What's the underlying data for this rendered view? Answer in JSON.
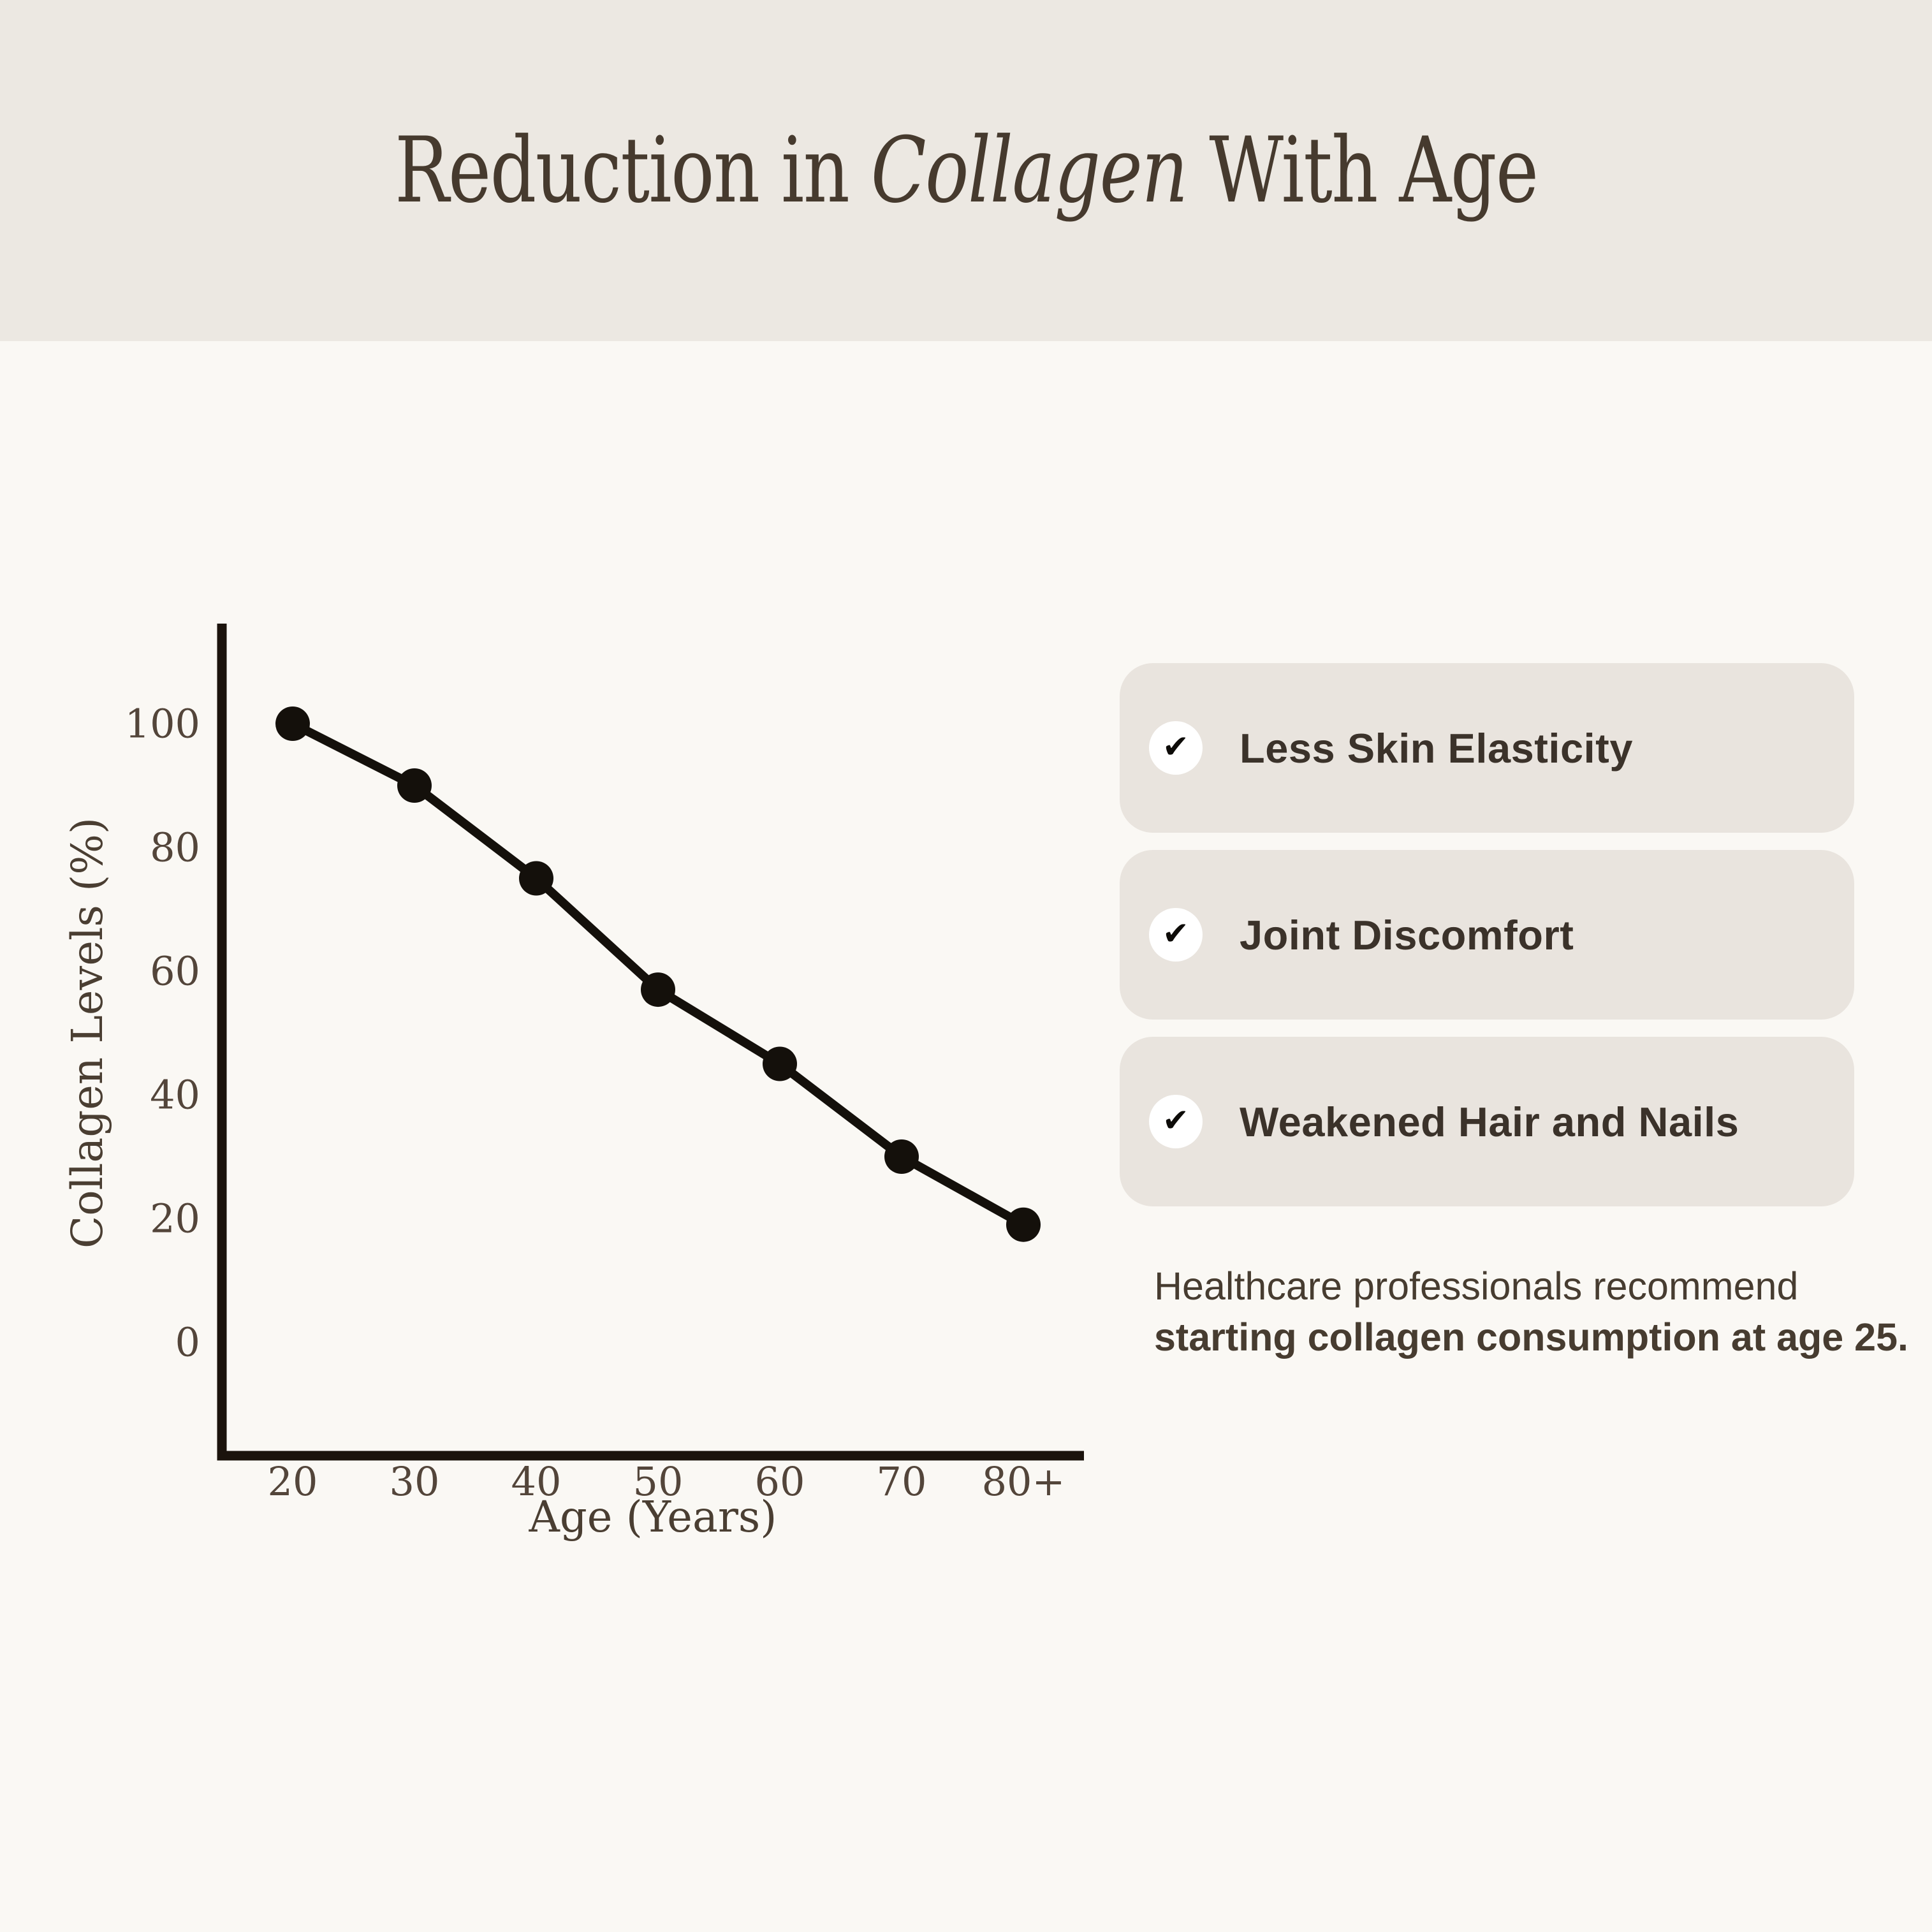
{
  "header": {
    "title_prefix": "Reduction in ",
    "title_italic": "Collagen",
    "title_suffix": " With Age"
  },
  "chart_data": {
    "type": "line",
    "title": "Reduction in Collagen With Age",
    "xlabel": "Age (Years)",
    "ylabel": "Collagen Levels (%)",
    "categories": [
      "20",
      "30",
      "40",
      "50",
      "60",
      "70",
      "80+"
    ],
    "values": [
      100,
      90,
      75,
      57,
      45,
      30,
      19
    ],
    "y_ticks": [
      100,
      80,
      60,
      40,
      20,
      0
    ],
    "ylim": [
      0,
      115
    ],
    "grid": false,
    "legend": "none",
    "line_color": "#14100B",
    "point_color": "#14100B",
    "axis_color": "#1B130C"
  },
  "checklist": {
    "check_icon": "✔",
    "items": [
      {
        "label": "Less Skin Elasticity"
      },
      {
        "label": "Joint Discomfort"
      },
      {
        "label": "Weakened Hair and Nails"
      }
    ]
  },
  "note": {
    "line1": "Healthcare professionals recommend",
    "line2": "starting collagen consumption at age 25."
  },
  "colors": {
    "header_background": "#ECE8E2",
    "page_background": "#FAF8F4",
    "card_background": "#E9E4DE",
    "title_text": "#463A2E",
    "axis_text": "#4A3E32",
    "card_text": "#3B322A",
    "note_text": "#473C30",
    "check_circle": "#FFFFFF",
    "check_mark": "#0D0B08"
  }
}
